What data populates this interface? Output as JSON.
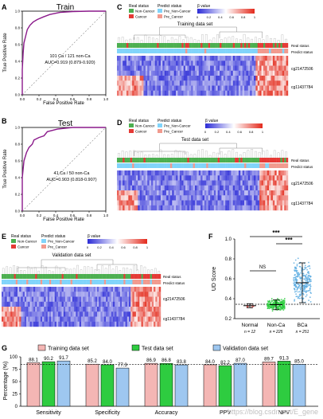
{
  "panels": {
    "A": {
      "letter": "A",
      "title": "Train",
      "xlabel": "False Positive Rate",
      "ylabel": "True Positive Rate",
      "ticks": [
        "0.0",
        "0.2",
        "0.4",
        "0.6",
        "0.8",
        "1.0"
      ],
      "counts": "101 Ca / 121 non-Ca",
      "auc": "AUC=0.919 (0.879-0.920)"
    },
    "B": {
      "letter": "B",
      "title": "Test",
      "xlabel": "False Positive Rate",
      "ylabel": "True Positive Rate",
      "ticks": [
        "0.0",
        "0.2",
        "0.4",
        "0.6",
        "0.8",
        "1.0"
      ],
      "counts": "41 Ca / 50 non-Ca",
      "auc": "AUC=0.903 (0.818-0.907)"
    },
    "C": {
      "letter": "C",
      "title": "Training data set"
    },
    "D": {
      "letter": "D",
      "title": "Test data set"
    },
    "E": {
      "letter": "E",
      "title": "Validation data set"
    },
    "F": {
      "letter": "F",
      "ylabel": "UD Score",
      "ticks": [
        "0.2",
        "0.4",
        "0.6",
        "0.8",
        "1.0"
      ],
      "groups": [
        "Normal",
        "Non-Ca",
        "BCa"
      ],
      "ns": [
        "n = 12",
        "n = 225",
        "n = 251"
      ],
      "sig_ns": "NS",
      "sig_star": "***"
    },
    "G": {
      "letter": "G",
      "ylabel": "Percentage (%)",
      "ticks": [
        "0",
        "25",
        "50",
        "75",
        "100"
      ]
    }
  },
  "heatmap_labels": {
    "real_status": "Real status",
    "predict_status": "Predict status",
    "non_cancer": "Non-Cancer",
    "cancer": "Cancer",
    "pre_non_cancer": "Pre_Non-Cancer",
    "pre_cancer": "Pre_Cancer",
    "beta_value": "β value",
    "scale": [
      "0",
      "0.2",
      "0.4",
      "0.6",
      "0.8",
      "1"
    ],
    "row1": "cg21472506",
    "row2": "cg11437784"
  },
  "watermark": "https://blog.csdn.net/E_gene",
  "colors": {
    "roc": "#8b1a8b",
    "non_cancer": "#4caf50",
    "cancer": "#e53935",
    "pre_non": "#81d4fa",
    "pre_ca": "#f19a8e",
    "low": "#2b2bd6",
    "high": "#e32a1c",
    "bar_train": "#f4b6b4",
    "bar_test": "#2ecc40",
    "bar_val": "#9ec7f0"
  },
  "chart_data": [
    {
      "type": "bar",
      "title": "",
      "categories": [
        "Sensitivity",
        "Specificity",
        "Accuracy",
        "PPV",
        "NPV"
      ],
      "series": [
        {
          "name": "Training data set",
          "values": [
            88.1,
            85.2,
            86.9,
            84.0,
            89.7
          ]
        },
        {
          "name": "Test data set",
          "values": [
            90.2,
            84.0,
            86.8,
            82.2,
            91.3
          ]
        },
        {
          "name": "Validation data set",
          "values": [
            91.7,
            77.3,
            83.8,
            87.0,
            85.0
          ]
        }
      ],
      "ylabel": "Percentage (%)",
      "ylim": [
        0,
        100
      ],
      "reference_line": 85,
      "legend": "top"
    },
    {
      "type": "scatter",
      "ylabel": "UD Score",
      "ylim": [
        0.2,
        1.0
      ],
      "categories": [
        "Normal",
        "Non-Ca",
        "BCa"
      ],
      "n": [
        12,
        225,
        251
      ],
      "approx_median": [
        0.33,
        0.34,
        0.56
      ],
      "threshold": 0.35
    }
  ]
}
